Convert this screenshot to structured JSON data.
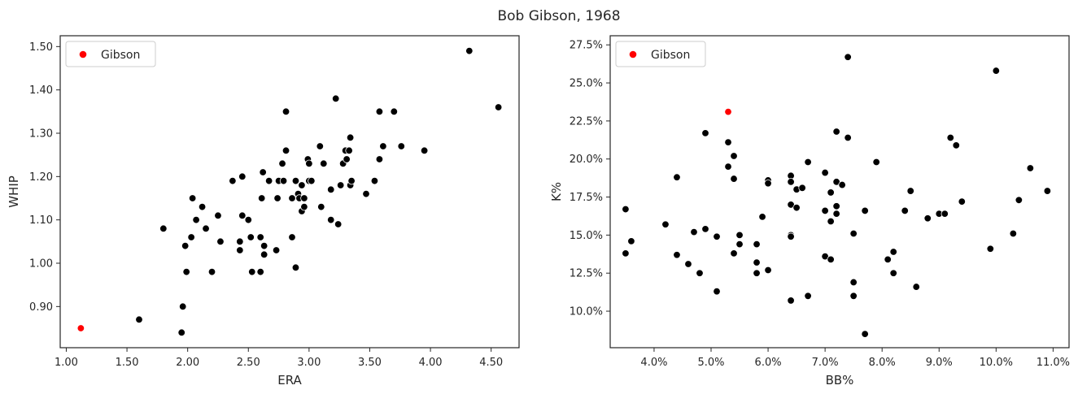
{
  "figure": {
    "title": "Bob Gibson, 1968"
  },
  "chart_data": [
    {
      "type": "scatter",
      "xlabel": "ERA",
      "ylabel": "WHIP",
      "xlim": [
        0.95,
        4.73
      ],
      "ylim": [
        0.805,
        1.525
      ],
      "xticks": [
        1.0,
        1.5,
        2.0,
        2.5,
        3.0,
        3.5,
        4.0,
        4.5
      ],
      "xtick_labels": [
        "1.00",
        "1.50",
        "2.00",
        "2.50",
        "3.00",
        "3.50",
        "4.00",
        "4.50"
      ],
      "yticks": [
        0.9,
        1.0,
        1.1,
        1.2,
        1.3,
        1.4,
        1.5
      ],
      "ytick_labels": [
        "0.90",
        "1.00",
        "1.10",
        "1.20",
        "1.30",
        "1.40",
        "1.50"
      ],
      "legend": {
        "position": "top-left",
        "entries": [
          "Gibson"
        ]
      },
      "grid": false,
      "highlight": {
        "name": "Gibson",
        "color": "#ff0000",
        "x": 1.12,
        "y": 0.85
      },
      "points_color": "#000000",
      "points": [
        [
          1.6,
          0.87
        ],
        [
          1.8,
          1.08
        ],
        [
          1.95,
          0.84
        ],
        [
          1.96,
          0.9
        ],
        [
          1.98,
          1.04
        ],
        [
          1.99,
          0.98
        ],
        [
          2.03,
          1.06
        ],
        [
          2.04,
          1.15
        ],
        [
          2.07,
          1.1
        ],
        [
          2.12,
          1.13
        ],
        [
          2.15,
          1.08
        ],
        [
          2.2,
          0.98
        ],
        [
          2.25,
          1.11
        ],
        [
          2.27,
          1.05
        ],
        [
          2.37,
          1.19
        ],
        [
          2.43,
          1.03
        ],
        [
          2.43,
          1.05
        ],
        [
          2.45,
          1.11
        ],
        [
          2.45,
          1.2
        ],
        [
          2.5,
          1.1
        ],
        [
          2.52,
          1.06
        ],
        [
          2.53,
          0.98
        ],
        [
          2.6,
          0.98
        ],
        [
          2.6,
          1.06
        ],
        [
          2.61,
          1.15
        ],
        [
          2.62,
          1.21
        ],
        [
          2.63,
          1.04
        ],
        [
          2.63,
          1.02
        ],
        [
          2.67,
          1.19
        ],
        [
          2.73,
          1.03
        ],
        [
          2.74,
          1.15
        ],
        [
          2.75,
          1.19
        ],
        [
          2.78,
          1.23
        ],
        [
          2.79,
          1.19
        ],
        [
          2.81,
          1.35
        ],
        [
          2.81,
          1.26
        ],
        [
          2.86,
          1.06
        ],
        [
          2.86,
          1.15
        ],
        [
          2.89,
          1.19
        ],
        [
          2.89,
          0.99
        ],
        [
          2.91,
          1.16
        ],
        [
          2.92,
          1.15
        ],
        [
          2.94,
          1.12
        ],
        [
          2.94,
          1.18
        ],
        [
          2.96,
          1.13
        ],
        [
          2.96,
          1.15
        ],
        [
          2.99,
          1.24
        ],
        [
          3.0,
          1.23
        ],
        [
          3.0,
          1.19
        ],
        [
          3.02,
          1.19
        ],
        [
          3.09,
          1.27
        ],
        [
          3.1,
          1.13
        ],
        [
          3.12,
          1.23
        ],
        [
          3.18,
          1.1
        ],
        [
          3.18,
          1.17
        ],
        [
          3.22,
          1.38
        ],
        [
          3.24,
          1.09
        ],
        [
          3.26,
          1.18
        ],
        [
          3.28,
          1.23
        ],
        [
          3.3,
          1.26
        ],
        [
          3.31,
          1.24
        ],
        [
          3.33,
          1.26
        ],
        [
          3.34,
          1.29
        ],
        [
          3.34,
          1.18
        ],
        [
          3.35,
          1.19
        ],
        [
          3.47,
          1.16
        ],
        [
          3.54,
          1.19
        ],
        [
          3.58,
          1.24
        ],
        [
          3.58,
          1.35
        ],
        [
          3.61,
          1.27
        ],
        [
          3.7,
          1.35
        ],
        [
          3.76,
          1.27
        ],
        [
          3.95,
          1.26
        ],
        [
          4.32,
          1.49
        ],
        [
          4.56,
          1.36
        ]
      ]
    },
    {
      "type": "scatter",
      "xlabel": "BB%",
      "ylabel": "K%",
      "xlim": [
        3.23,
        11.28
      ],
      "ylim": [
        7.6,
        28.1
      ],
      "xticks": [
        4,
        5,
        6,
        7,
        8,
        9,
        10,
        11
      ],
      "xtick_labels": [
        "4.0%",
        "5.0%",
        "6.0%",
        "7.0%",
        "8.0%",
        "9.0%",
        "10.0%",
        "11.0%"
      ],
      "yticks": [
        10.0,
        12.5,
        15.0,
        17.5,
        20.0,
        22.5,
        25.0,
        27.5
      ],
      "ytick_labels": [
        "10.0%",
        "12.5%",
        "15.0%",
        "17.5%",
        "20.0%",
        "22.5%",
        "25.0%",
        "27.5%"
      ],
      "legend": {
        "position": "top-left",
        "entries": [
          "Gibson"
        ]
      },
      "grid": false,
      "highlight": {
        "name": "Gibson",
        "color": "#ff0000",
        "x": 5.3,
        "y": 23.1
      },
      "points_color": "#000000",
      "points": [
        [
          3.5,
          16.7
        ],
        [
          3.5,
          13.8
        ],
        [
          3.6,
          14.6
        ],
        [
          4.2,
          15.7
        ],
        [
          4.4,
          18.8
        ],
        [
          4.4,
          13.7
        ],
        [
          4.6,
          13.1
        ],
        [
          4.7,
          15.2
        ],
        [
          4.8,
          12.5
        ],
        [
          4.9,
          15.4
        ],
        [
          4.9,
          21.7
        ],
        [
          5.1,
          14.9
        ],
        [
          5.1,
          11.3
        ],
        [
          5.3,
          21.1
        ],
        [
          5.3,
          19.5
        ],
        [
          5.4,
          20.2
        ],
        [
          5.4,
          18.7
        ],
        [
          5.4,
          13.8
        ],
        [
          5.5,
          15.0
        ],
        [
          5.5,
          14.4
        ],
        [
          5.8,
          14.4
        ],
        [
          5.8,
          13.2
        ],
        [
          5.8,
          12.5
        ],
        [
          5.9,
          16.2
        ],
        [
          6.0,
          18.6
        ],
        [
          6.0,
          18.4
        ],
        [
          6.0,
          12.7
        ],
        [
          6.4,
          18.9
        ],
        [
          6.4,
          18.5
        ],
        [
          6.4,
          17.0
        ],
        [
          6.4,
          15.0
        ],
        [
          6.4,
          14.9
        ],
        [
          6.4,
          10.7
        ],
        [
          6.5,
          18.0
        ],
        [
          6.5,
          16.8
        ],
        [
          6.6,
          18.1
        ],
        [
          6.7,
          19.8
        ],
        [
          6.7,
          11.0
        ],
        [
          7.0,
          19.1
        ],
        [
          7.0,
          16.6
        ],
        [
          7.0,
          13.6
        ],
        [
          7.1,
          17.8
        ],
        [
          7.1,
          15.9
        ],
        [
          7.1,
          13.4
        ],
        [
          7.2,
          21.8
        ],
        [
          7.2,
          18.5
        ],
        [
          7.2,
          16.9
        ],
        [
          7.2,
          16.4
        ],
        [
          7.3,
          18.3
        ],
        [
          7.4,
          26.7
        ],
        [
          7.4,
          21.4
        ],
        [
          7.5,
          15.1
        ],
        [
          7.5,
          11.9
        ],
        [
          7.5,
          11.0
        ],
        [
          7.7,
          16.6
        ],
        [
          7.7,
          8.5
        ],
        [
          7.9,
          19.8
        ],
        [
          8.1,
          13.4
        ],
        [
          8.2,
          13.9
        ],
        [
          8.2,
          12.5
        ],
        [
          8.4,
          16.6
        ],
        [
          8.5,
          17.9
        ],
        [
          8.6,
          11.6
        ],
        [
          8.8,
          16.1
        ],
        [
          9.0,
          16.4
        ],
        [
          9.1,
          16.4
        ],
        [
          9.2,
          21.4
        ],
        [
          9.3,
          20.9
        ],
        [
          9.4,
          17.2
        ],
        [
          9.9,
          14.1
        ],
        [
          10.0,
          25.8
        ],
        [
          10.3,
          15.1
        ],
        [
          10.4,
          17.3
        ],
        [
          10.6,
          19.4
        ],
        [
          10.9,
          17.9
        ]
      ]
    }
  ]
}
